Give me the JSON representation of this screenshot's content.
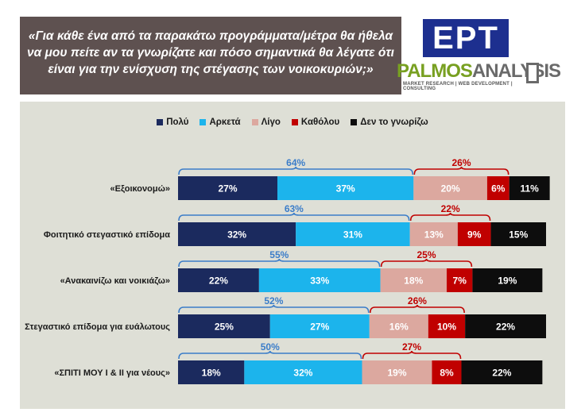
{
  "header": {
    "question_lines": [
      "«Για κάθε ένα από τα παρακάτω προγράμματα/μέτρα θα ήθελα",
      "να μου πείτε αν τα γνωρίζατε και πόσο σημαντικά θα λέγατε ότι",
      "είναι για την ενίσχυση της στέγασης των νοικοκυριών;»"
    ]
  },
  "logos": {
    "ept": "ΕΡΤ",
    "palmos_part1": "PALMOS",
    "palmos_part2": "ANALYSIS",
    "palmos_tagline": "MARKET RESEARCH | WEB DEVELOPMENT | CONSULTING"
  },
  "chart_data": {
    "type": "bar",
    "orientation": "horizontal",
    "stacked": true,
    "unit": "%",
    "legend_position": "top",
    "categories": [
      "«Εξοικονομώ»",
      "Φοιτητικό στεγαστικό επίδομα",
      "«Ανακαινίζω και νοικιάζω»",
      "Στεγαστικό επίδομα για ευάλωτους",
      "«ΣΠΙΤΙ ΜΟΥ Ι & ΙΙ για νέους»"
    ],
    "series": [
      {
        "name": "Πολύ",
        "color": "#1b2a5e",
        "label_color": "#ffffff",
        "values": [
          27,
          32,
          22,
          25,
          18
        ]
      },
      {
        "name": "Αρκετά",
        "color": "#1cb4ec",
        "label_color": "#ffffff",
        "values": [
          37,
          31,
          33,
          27,
          32
        ]
      },
      {
        "name": "Λίγο",
        "color": "#dca89f",
        "label_color": "#ffffff",
        "values": [
          20,
          13,
          18,
          16,
          19
        ]
      },
      {
        "name": "Καθόλου",
        "color": "#c00000",
        "label_color": "#ffffff",
        "values": [
          6,
          9,
          7,
          10,
          8
        ]
      },
      {
        "name": "Δεν το γνωρίζω",
        "color": "#0d0d0d",
        "label_color": "#ffffff",
        "values": [
          11,
          15,
          19,
          22,
          22
        ]
      }
    ],
    "group_brackets": [
      {
        "series": [
          0,
          1
        ],
        "color": "#3b7dc9",
        "values": [
          64,
          63,
          55,
          52,
          50
        ]
      },
      {
        "series": [
          2,
          3
        ],
        "color": "#c00000",
        "values": [
          26,
          22,
          25,
          26,
          27
        ]
      }
    ],
    "xlim": [
      0,
      100
    ]
  }
}
